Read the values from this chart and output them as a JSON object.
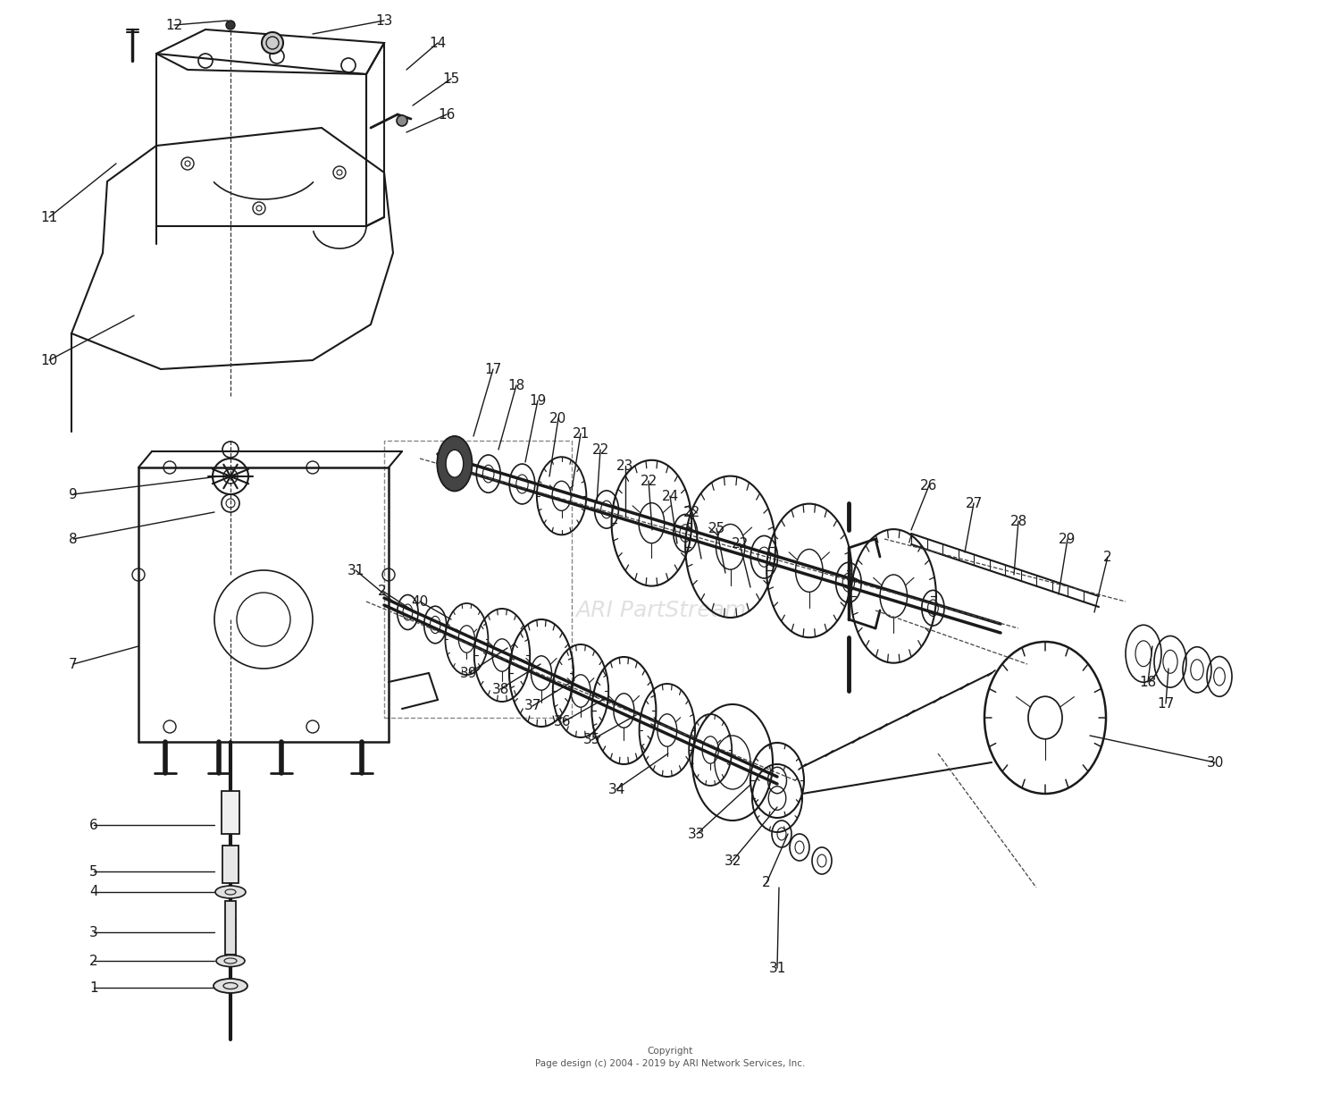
{
  "bg_color": "#ffffff",
  "line_color": "#1a1a1a",
  "watermark": "ARI PartStream",
  "copyright": "Copyright\nPage design (c) 2004 - 2019 by ARI Network Services, Inc.",
  "fig_w": 15.0,
  "fig_h": 12.43
}
